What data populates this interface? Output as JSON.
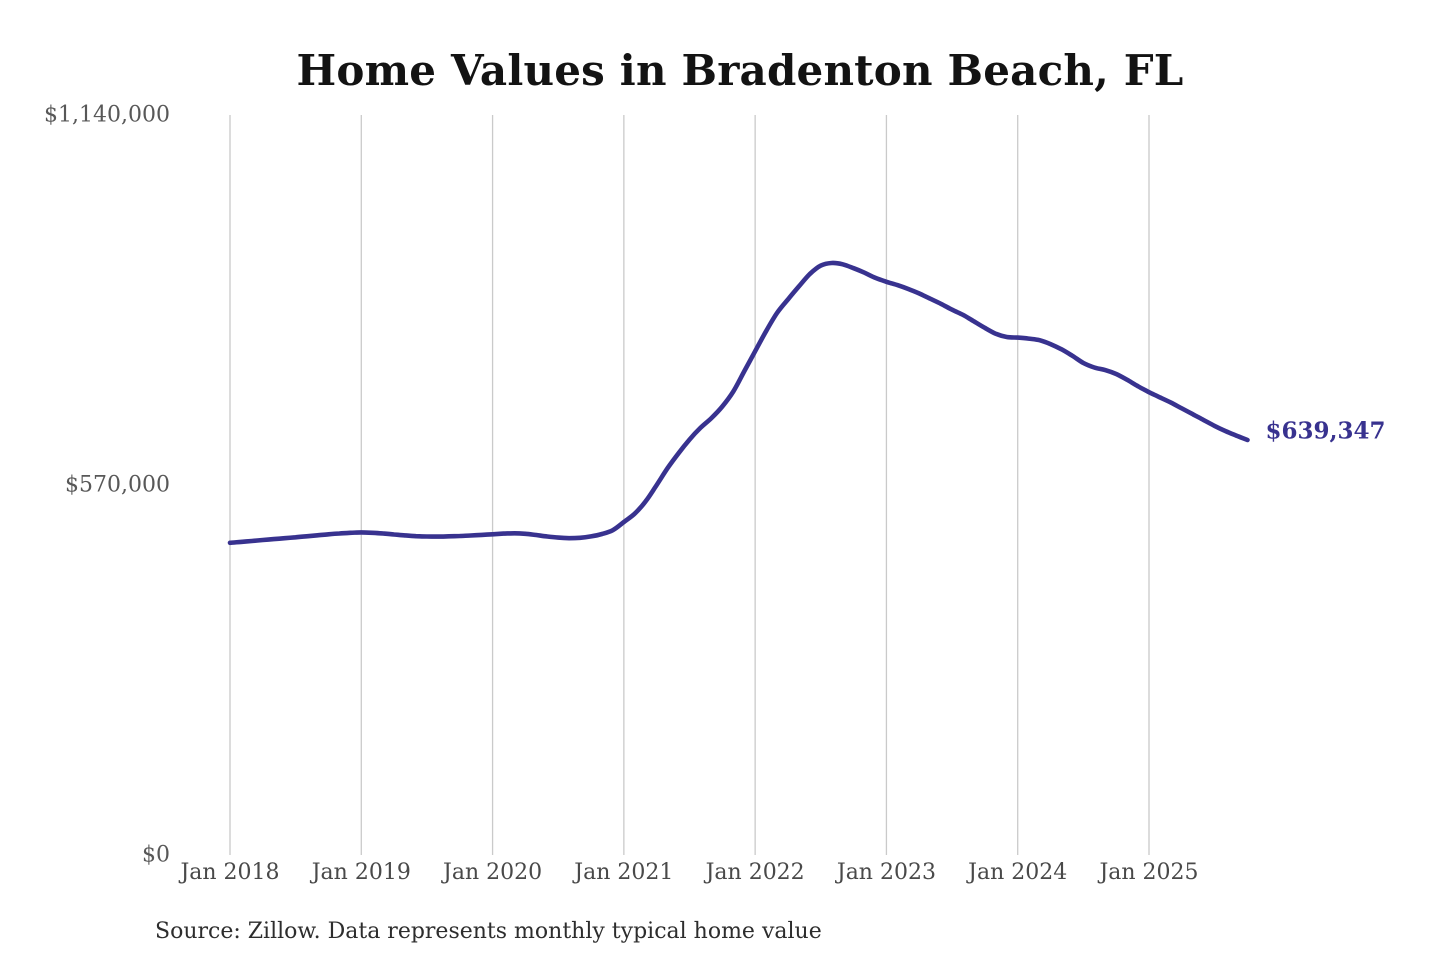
{
  "page": {
    "title": "Home Values in Bradenton Beach, FL",
    "source_note": "Source: Zillow. Data represents monthly typical home value"
  },
  "colors": {
    "background": "#ffffff",
    "line": "#38328f",
    "grid": "#cacaca",
    "title_text": "#131313",
    "y_axis_text": "#585858",
    "x_axis_text": "#494949",
    "source_text": "#2d2d2d",
    "annotation_text": "#38328f"
  },
  "chart_data": {
    "type": "line",
    "title": "Home Values in Bradenton Beach, FL",
    "xlabel": "",
    "ylabel": "",
    "ylim": [
      0,
      1140000
    ],
    "grid": "vertical",
    "legend": "none",
    "line_width": 4.6,
    "y_ticks": [
      {
        "value": 0,
        "label": "$0"
      },
      {
        "value": 570000,
        "label": "$570,000"
      },
      {
        "value": 1140000,
        "label": "$1,140,000"
      }
    ],
    "x_ticks": [
      {
        "index": 0,
        "label": "Jan 2018"
      },
      {
        "index": 12,
        "label": "Jan 2019"
      },
      {
        "index": 24,
        "label": "Jan 2020"
      },
      {
        "index": 36,
        "label": "Jan 2021"
      },
      {
        "index": 48,
        "label": "Jan 2022"
      },
      {
        "index": 60,
        "label": "Jan 2023"
      },
      {
        "index": 72,
        "label": "Jan 2024"
      },
      {
        "index": 84,
        "label": "Jan 2025"
      }
    ],
    "months": [
      "2018-01",
      "2018-02",
      "2018-03",
      "2018-04",
      "2018-05",
      "2018-06",
      "2018-07",
      "2018-08",
      "2018-09",
      "2018-10",
      "2018-11",
      "2018-12",
      "2019-01",
      "2019-02",
      "2019-03",
      "2019-04",
      "2019-05",
      "2019-06",
      "2019-07",
      "2019-08",
      "2019-09",
      "2019-10",
      "2019-11",
      "2019-12",
      "2020-01",
      "2020-02",
      "2020-03",
      "2020-04",
      "2020-05",
      "2020-06",
      "2020-07",
      "2020-08",
      "2020-09",
      "2020-10",
      "2020-11",
      "2020-12",
      "2021-01",
      "2021-02",
      "2021-03",
      "2021-04",
      "2021-05",
      "2021-06",
      "2021-07",
      "2021-08",
      "2021-09",
      "2021-10",
      "2021-11",
      "2021-12",
      "2022-01",
      "2022-02",
      "2022-03",
      "2022-04",
      "2022-05",
      "2022-06",
      "2022-07",
      "2022-08",
      "2022-09",
      "2022-10",
      "2022-11",
      "2022-12",
      "2023-01",
      "2023-02",
      "2023-03",
      "2023-04",
      "2023-05",
      "2023-06",
      "2023-07",
      "2023-08",
      "2023-09",
      "2023-10",
      "2023-11",
      "2023-12",
      "2024-01",
      "2024-02",
      "2024-03",
      "2024-04",
      "2024-05",
      "2024-06",
      "2024-07",
      "2024-08",
      "2024-09",
      "2024-10",
      "2024-11",
      "2024-12",
      "2025-01",
      "2025-02",
      "2025-03",
      "2025-04",
      "2025-05",
      "2025-06",
      "2025-07",
      "2025-08",
      "2025-09",
      "2025-10"
    ],
    "values": [
      481000,
      482400,
      483800,
      485200,
      486600,
      488000,
      489500,
      491000,
      492500,
      494000,
      495300,
      496300,
      497000,
      496400,
      495300,
      493800,
      492300,
      491200,
      490600,
      490500,
      490900,
      491500,
      492200,
      493100,
      494100,
      495100,
      495600,
      494800,
      492900,
      490700,
      489000,
      488100,
      488600,
      490800,
      494500,
      500500,
      513000,
      526000,
      545000,
      570000,
      596000,
      619000,
      640000,
      658000,
      673000,
      691000,
      714000,
      745000,
      776000,
      807000,
      835000,
      856000,
      876000,
      895000,
      908000,
      912000,
      910000,
      904000,
      897000,
      889000,
      883000,
      878000,
      872000,
      865000,
      857000,
      849000,
      840000,
      832000,
      822000,
      812000,
      803000,
      798000,
      797000,
      795500,
      793000,
      787000,
      779000,
      769000,
      758000,
      751000,
      747000,
      741000,
      732000,
      722000,
      713000,
      705000,
      697000,
      688000,
      679000,
      670000,
      661000,
      653000,
      646000,
      639347
    ],
    "end_annotation": {
      "text": "$639,347",
      "value": 639347
    }
  }
}
